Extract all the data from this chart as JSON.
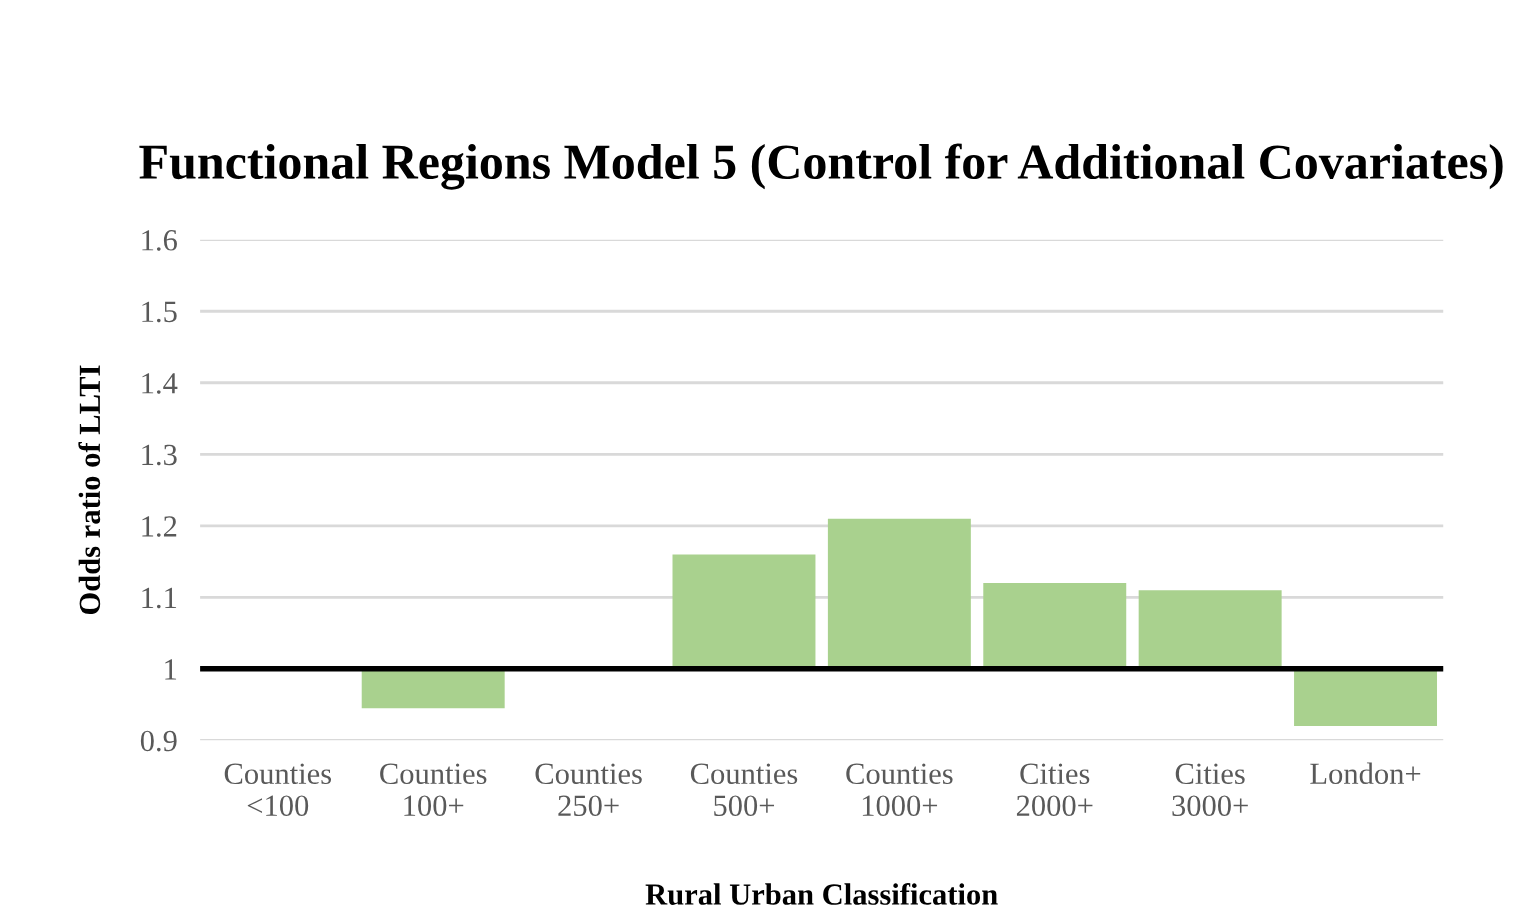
{
  "chart_data": {
    "type": "bar",
    "title": "Functional Regions Model 5 (Control for Additional Covariates)",
    "xlabel": "Rural Urban Classification",
    "ylabel": "Odds ratio of LLTI",
    "categories": [
      "Counties\n<100",
      "Counties\n100+",
      "Counties\n250+",
      "Counties\n500+",
      "Counties\n1000+",
      "Cities\n2000+",
      "Cities\n3000+",
      "London+"
    ],
    "base": [
      null,
      1,
      null,
      1,
      1,
      1,
      1,
      1
    ],
    "values": [
      null,
      -0.055,
      null,
      0.16,
      0.21,
      0.12,
      0.11,
      -0.08
    ],
    "color": "#a9d18e",
    "ylim": [
      0.9,
      1.6
    ],
    "yticks": [
      {
        "value": 0.9,
        "label": "0.9"
      },
      {
        "value": 1.0,
        "label": "1"
      },
      {
        "value": 1.1,
        "label": "1.1"
      },
      {
        "value": 1.2,
        "label": "1.2"
      },
      {
        "value": 1.3,
        "label": "1.3"
      },
      {
        "value": 1.4,
        "label": "1.4"
      },
      {
        "value": 1.5,
        "label": "1.5"
      },
      {
        "value": 1.6,
        "label": "1.6"
      }
    ],
    "grid": "y",
    "legend": false,
    "ref_lines": [
      {
        "axis": "y",
        "value": 1,
        "color": "#000000"
      }
    ]
  }
}
